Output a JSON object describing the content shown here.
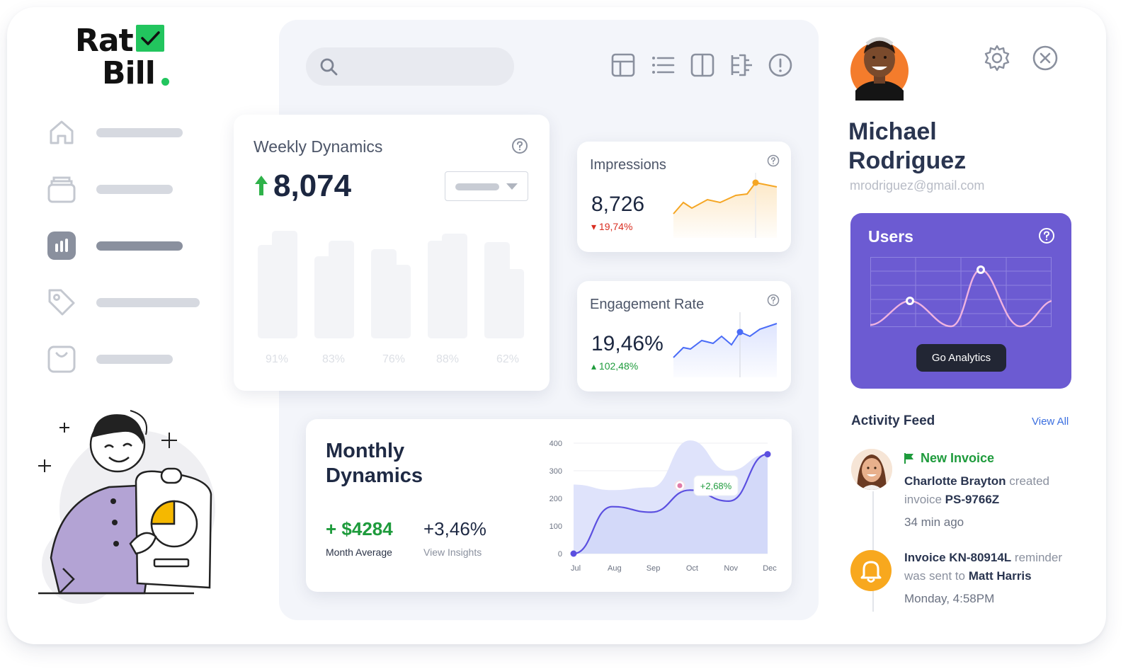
{
  "brand": {
    "line1": "Rat",
    "line2": "Bill",
    "accent": "#22c55e"
  },
  "sidebar": {
    "items": [
      {
        "icon": "home-icon",
        "active": false
      },
      {
        "icon": "archive-box-icon",
        "active": false
      },
      {
        "icon": "bar-chart-icon",
        "active": true
      },
      {
        "icon": "tag-icon",
        "active": false
      },
      {
        "icon": "shopping-bag-icon",
        "active": false
      }
    ]
  },
  "toolbar": {
    "icons": [
      "grid-view-icon",
      "list-view-icon",
      "split-view-icon",
      "flow-icon",
      "info-icon"
    ]
  },
  "weekly": {
    "title": "Weekly Dynamics",
    "value": "8,074",
    "trend": "up",
    "bar_labels": [
      "91%",
      "83%",
      "76%",
      "88%",
      "62%"
    ]
  },
  "impressions": {
    "title": "Impressions",
    "value": "8,726",
    "change": "19,74%",
    "direction": "down",
    "color": "#f5a623"
  },
  "engagement": {
    "title": "Engagement Rate",
    "value": "19,46%",
    "change": "102,48%",
    "direction": "up",
    "color": "#4a6cf7"
  },
  "monthly": {
    "title": "Monthly Dynamics",
    "stat1_value": "+ $4284",
    "stat1_label": "Month Average",
    "stat2_value": "+3,46%",
    "stat2_label": "View Insights",
    "tooltip": "+2,68%",
    "chart_data": {
      "type": "area",
      "x": [
        "Jul",
        "Aug",
        "Sep",
        "Oct",
        "Nov",
        "Dec"
      ],
      "y_ticks": [
        0,
        100,
        200,
        300,
        400
      ],
      "ylim": [
        0,
        400
      ],
      "series": [
        {
          "values": [
            0,
            170,
            150,
            230,
            190,
            360
          ]
        },
        {
          "values": [
            250,
            230,
            240,
            410,
            300,
            360
          ]
        }
      ]
    }
  },
  "profile": {
    "first_name": "Michael",
    "last_name": "Rodriguez",
    "email": "mrodriguez@gmail.com"
  },
  "users_card": {
    "title": "Users",
    "button": "Go Analytics",
    "color": "#6c5bd2"
  },
  "activity": {
    "title": "Activity Feed",
    "view_all": "View All",
    "items": [
      {
        "tag": "New Invoice",
        "name": "Charlotte Brayton",
        "text1": " created",
        "text2": "invoice ",
        "code": "PS-9766Z",
        "time": "34  min ago"
      },
      {
        "code": "Invoice KN-80914L",
        "text1": " reminder",
        "text2": "was sent to ",
        "name": "Matt Harris",
        "time": "Monday, 4:58PM"
      }
    ]
  }
}
